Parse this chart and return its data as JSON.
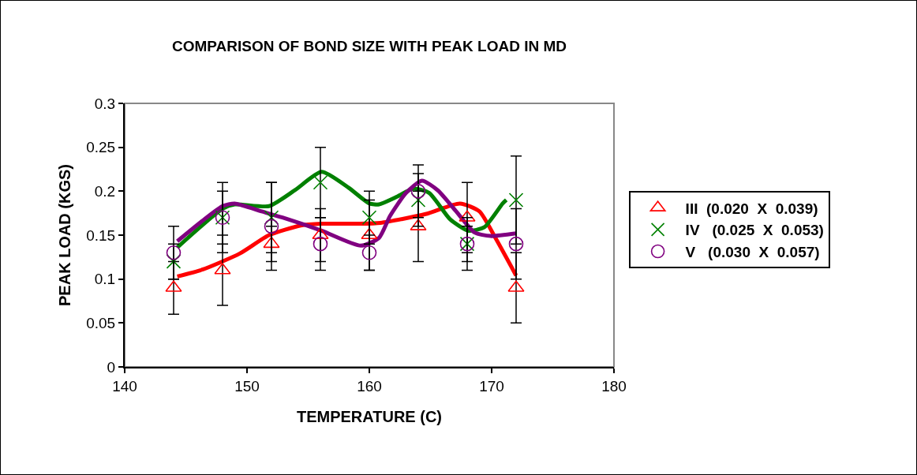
{
  "chart_data": {
    "type": "scatter",
    "title": "COMPARISON OF BOND SIZE WITH PEAK LOAD IN MD",
    "xlabel": "TEMPERATURE (C)",
    "ylabel": "PEAK LOAD (KGS)",
    "x": [
      144,
      148,
      152,
      156,
      160,
      164,
      168,
      172
    ],
    "xlim": [
      140,
      180
    ],
    "xticks": [
      140,
      150,
      160,
      170,
      180
    ],
    "ylim": [
      0,
      0.3
    ],
    "yticks": [
      0,
      0.05,
      0.1,
      0.15,
      0.2,
      0.25,
      0.3
    ],
    "grid": false,
    "legend": "right",
    "series": [
      {
        "type": "line",
        "color": "#ff0000",
        "marker": "none",
        "line_style": "solid",
        "x": [
          144.3,
          146.4,
          149.4,
          151.8,
          154.4,
          156.1,
          159.1,
          160.9,
          164.6,
          167.4,
          169,
          170.3,
          172
        ],
        "values": [
          0.103,
          0.111,
          0.129,
          0.15,
          0.161,
          0.163,
          0.163,
          0.164,
          0.174,
          0.186,
          0.177,
          0.147,
          0.104
        ]
      },
      {
        "type": "line",
        "color": "#008000",
        "marker": "none",
        "line_style": "solid",
        "x": [
          144.3,
          148,
          149,
          151.8,
          153.9,
          156.1,
          158.3,
          160,
          160.8,
          162.3,
          163.6,
          164.9,
          166.6,
          168.1,
          169.4,
          170.9,
          171.2
        ],
        "values": [
          0.136,
          0.18,
          0.185,
          0.183,
          0.201,
          0.222,
          0.204,
          0.186,
          0.185,
          0.194,
          0.203,
          0.198,
          0.168,
          0.155,
          0.159,
          0.186,
          0.19
        ]
      },
      {
        "type": "line",
        "color": "#800080",
        "marker": "none",
        "line_style": "solid",
        "x": [
          144.3,
          148,
          149,
          151.2,
          152.9,
          156.1,
          159.3,
          160.8,
          161.7,
          163,
          164.3,
          165.6,
          167.1,
          168.6,
          169.9,
          172
        ],
        "values": [
          0.143,
          0.183,
          0.186,
          0.177,
          0.17,
          0.155,
          0.138,
          0.147,
          0.172,
          0.198,
          0.212,
          0.201,
          0.177,
          0.153,
          0.149,
          0.152
        ]
      },
      {
        "name": "III  (0.020  X  0.039)",
        "color": "#ff0000",
        "marker": "triangle",
        "values": [
          0.09,
          0.11,
          0.14,
          0.15,
          0.15,
          0.16,
          0.17,
          0.09
        ],
        "errors": [
          0.03,
          0.04,
          0.02,
          0.03,
          0.04,
          0.04,
          0.04,
          0.04
        ]
      },
      {
        "name": "IV   (0.025  X  0.053)",
        "color": "#008000",
        "marker": "cross",
        "values": [
          0.12,
          0.17,
          0.17,
          0.21,
          0.17,
          0.19,
          0.14,
          0.19
        ],
        "errors": [
          0.02,
          0.04,
          0.04,
          0.04,
          0.03,
          0.03,
          0.03,
          0.05
        ]
      },
      {
        "name": "V   (0.030  X  0.057)",
        "color": "#800080",
        "marker": "circle",
        "values": [
          0.13,
          0.17,
          0.16,
          0.14,
          0.13,
          0.2,
          0.14,
          0.14
        ],
        "errors": [
          0.03,
          0.03,
          0.05,
          0.03,
          0.02,
          0.03,
          0.02,
          0.04
        ]
      }
    ]
  }
}
